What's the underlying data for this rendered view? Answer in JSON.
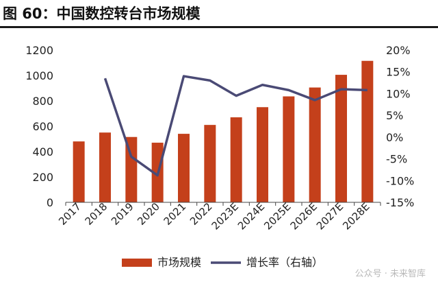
{
  "title": "图 60：中国数控转台市场规模",
  "watermark": "公众号 · 未来智库",
  "colors": {
    "bar": "#C4401B",
    "line": "#4A4A75",
    "axis": "#444444",
    "text": "#222222"
  },
  "chart_data": {
    "type": "bar",
    "categories": [
      "2017",
      "2018",
      "2019",
      "2020",
      "2021",
      "2022",
      "2023E",
      "2024E",
      "2025E",
      "2026E",
      "2027E",
      "2028E"
    ],
    "series": [
      {
        "name": "市场规模",
        "type": "bar",
        "axis": "left",
        "values": [
          480,
          550,
          515,
          470,
          540,
          610,
          670,
          750,
          835,
          905,
          1005,
          1115
        ]
      },
      {
        "name": "增长率（右轴）",
        "type": "line",
        "axis": "right",
        "values": [
          null,
          13.5,
          -4.5,
          -8.8,
          14.0,
          13.0,
          9.5,
          12.0,
          10.8,
          8.5,
          11.0,
          10.8
        ]
      }
    ],
    "yleft": {
      "min": 0,
      "max": 1200,
      "ticks": [
        0,
        200,
        400,
        600,
        800,
        1000,
        1200
      ]
    },
    "yright": {
      "min": -15,
      "max": 20,
      "ticks": [
        -15,
        -10,
        -5,
        0,
        5,
        10,
        15,
        20
      ],
      "tick_labels": [
        "-15%",
        "-10%",
        "-5%",
        "0%",
        "5%",
        "10%",
        "15%",
        "20%"
      ]
    },
    "legend": {
      "position": "bottom"
    },
    "grid": false
  }
}
